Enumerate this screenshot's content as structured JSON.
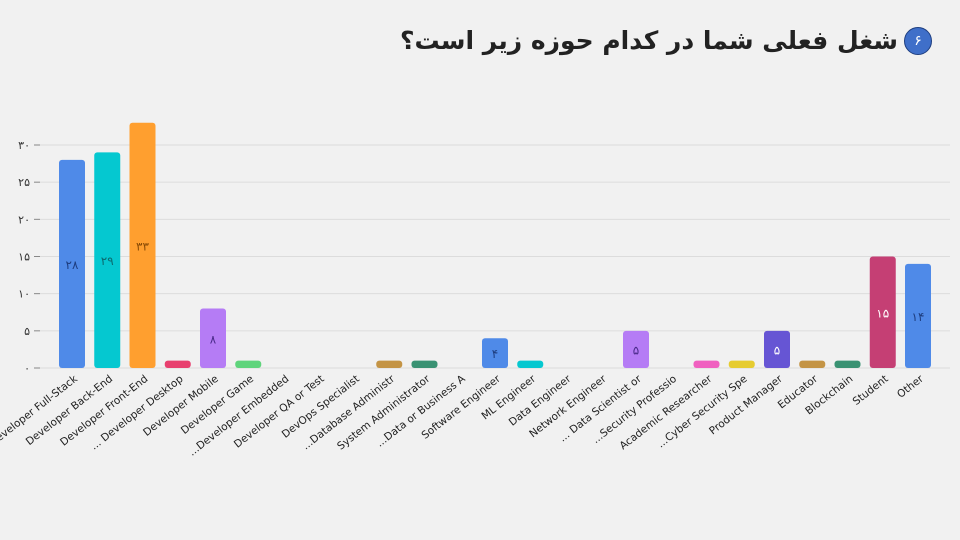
{
  "header": {
    "number": "۶",
    "title": "شغل فعلی شما در کدام حوزه زیر است؟"
  },
  "chart_data": {
    "type": "bar",
    "title": "شغل فعلی شما در کدام حوزه زیر است؟",
    "ylim": [
      0,
      33
    ],
    "yticks": [
      0,
      5,
      10,
      15,
      20,
      25,
      30
    ],
    "ytick_labels": [
      "۰",
      "۵",
      "۱۰",
      "۱۵",
      "۲۰",
      "۲۵",
      "۳۰"
    ],
    "grid": true,
    "categories": [
      "Developer Full-Stack",
      "Developer Back-End",
      "Developer Front-End",
      "... Developer Desktop",
      "Developer Mobile",
      "Developer Game",
      "...Developer Embedded",
      "Developer QA or Test",
      "DevOps Specialist",
      "...Database Administr",
      "System Administrator",
      "...Data or Business A",
      "Software Engineer",
      "ML Engineer",
      "Data Engineer",
      "Network Engineer",
      "... Data Scientist or",
      "...Security Professio",
      "Academic Researcher",
      "...Cyber Security Spe",
      "Product Manager",
      "Educator",
      "Blockchain",
      "Student",
      "Other"
    ],
    "values": [
      28,
      29,
      33,
      1,
      8,
      1,
      0,
      0,
      0,
      1,
      1,
      0,
      4,
      1,
      0,
      0,
      5,
      0,
      1,
      1,
      5,
      1,
      1,
      15,
      14
    ],
    "data_labels": [
      "۲۸",
      "۲۹",
      "۳۳",
      "",
      "۸",
      "",
      "",
      "",
      "",
      "",
      "",
      "",
      "۴",
      "",
      "",
      "",
      "۵",
      "",
      "",
      "",
      "۵",
      "",
      "",
      "۱۵",
      "۱۴"
    ],
    "colors": [
      "#4f8ae8",
      "#05c8d0",
      "#ff9f2f",
      "#e8406f",
      "#b57cf5",
      "#5fd47c",
      "#888888",
      "#888888",
      "#888888",
      "#c49445",
      "#3a9273",
      "#888888",
      "#4f8ae8",
      "#05c8d0",
      "#888888",
      "#888888",
      "#b57cf5",
      "#888888",
      "#f060c0",
      "#e6cc30",
      "#6655d4",
      "#c49445",
      "#3a9273",
      "#c53f74",
      "#4f8ae8"
    ],
    "label_colors": [
      "#1e3e80",
      "#0b6b70",
      "#8a4b05",
      "",
      "#4a2a8a",
      "",
      "",
      "",
      "",
      "",
      "",
      "",
      "#1e3e80",
      "",
      "",
      "",
      "#4a2a8a",
      "",
      "",
      "",
      "#ffffff",
      "",
      "",
      "#ffffff",
      "#1e3e80"
    ]
  }
}
